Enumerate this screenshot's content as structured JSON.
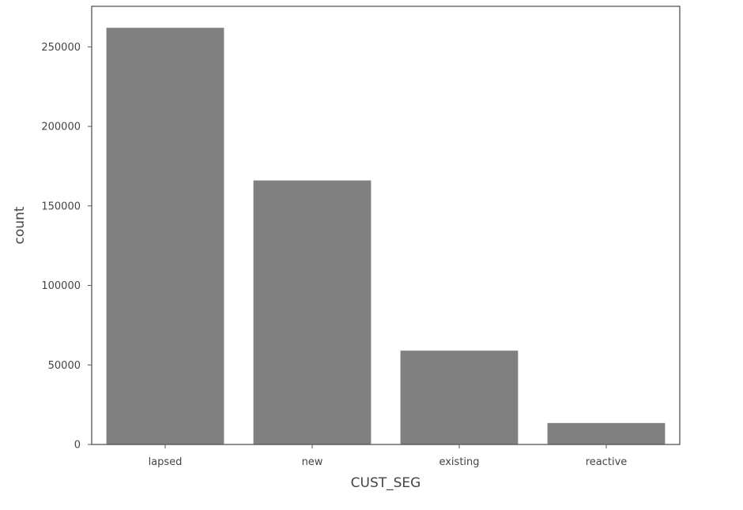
{
  "chart_data": {
    "type": "bar",
    "categories": [
      "lapsed",
      "new",
      "existing",
      "reactive"
    ],
    "values": [
      262000,
      166000,
      59000,
      13500
    ],
    "xlabel": "CUST_SEG",
    "ylabel": "count",
    "ylim": [
      0,
      275500
    ],
    "yticks": [
      0,
      50000,
      100000,
      150000,
      200000,
      250000
    ],
    "ytick_labels": [
      "0",
      "50000",
      "100000",
      "150000",
      "200000",
      "250000"
    ],
    "grid": false,
    "bar_color": "#808080"
  }
}
